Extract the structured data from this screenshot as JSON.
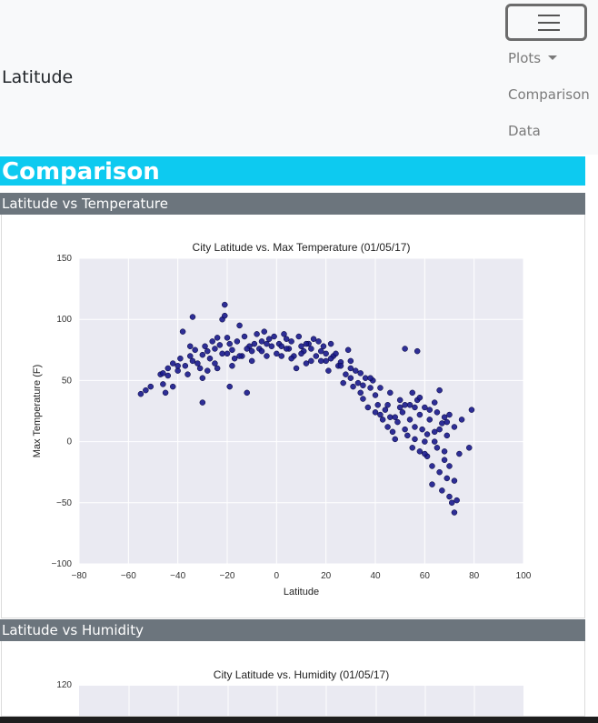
{
  "navbar": {
    "brand": "Latitude",
    "items": [
      {
        "label": "Plots"
      },
      {
        "label": "Comparison"
      },
      {
        "label": "Data"
      }
    ],
    "toggler_icon": "hamburger-menu-icon"
  },
  "page": {
    "heading": "Comparison",
    "colors": {
      "heading_bg": "#0dcaf0",
      "section_bg": "#6c757d"
    }
  },
  "sections": [
    {
      "title": "Latitude vs Temperature"
    },
    {
      "title": "Latitude vs Humidity"
    }
  ],
  "chart_data": [
    {
      "type": "scatter",
      "title": "City Latitude vs. Max Temperature (01/05/17)",
      "xlabel": "Latitude",
      "ylabel": "Max Temperature (F)",
      "xlim": [
        -80,
        100
      ],
      "ylim": [
        -100,
        150
      ],
      "xticks": [
        -80,
        -60,
        -40,
        -20,
        0,
        20,
        40,
        60,
        80,
        100
      ],
      "yticks": [
        -100,
        -50,
        0,
        50,
        100,
        150
      ],
      "grid": true,
      "marker_color": "#1a1a8c",
      "points": [
        [
          -55,
          39
        ],
        [
          -53,
          42
        ],
        [
          -51,
          45
        ],
        [
          -47,
          55
        ],
        [
          -46,
          56
        ],
        [
          -46,
          47
        ],
        [
          -45,
          40
        ],
        [
          -44,
          60
        ],
        [
          -42,
          64
        ],
        [
          -42,
          45
        ],
        [
          -40,
          58
        ],
        [
          -39,
          68
        ],
        [
          -38,
          90
        ],
        [
          -37,
          62
        ],
        [
          -36,
          55
        ],
        [
          -35,
          70
        ],
        [
          -34,
          66
        ],
        [
          -34,
          102
        ],
        [
          -33,
          75
        ],
        [
          -32,
          64
        ],
        [
          -31,
          60
        ],
        [
          -30,
          71
        ],
        [
          -30,
          32
        ],
        [
          -29,
          78
        ],
        [
          -28,
          74
        ],
        [
          -27,
          68
        ],
        [
          -26,
          82
        ],
        [
          -25,
          76
        ],
        [
          -24,
          85
        ],
        [
          -24,
          60
        ],
        [
          -23,
          79
        ],
        [
          -22,
          72
        ],
        [
          -22,
          100
        ],
        [
          -21,
          112
        ],
        [
          -21,
          103
        ],
        [
          -20,
          85
        ],
        [
          -19,
          80
        ],
        [
          -19,
          45
        ],
        [
          -18,
          75
        ],
        [
          -17,
          68
        ],
        [
          -16,
          82
        ],
        [
          -15,
          95
        ],
        [
          -14,
          70
        ],
        [
          -13,
          86
        ],
        [
          -12,
          40
        ],
        [
          -11,
          78
        ],
        [
          -10,
          74
        ],
        [
          -9,
          80
        ],
        [
          -8,
          88
        ],
        [
          -7,
          76
        ],
        [
          -6,
          82
        ],
        [
          -5,
          90
        ],
        [
          -4,
          70
        ],
        [
          -3,
          84
        ],
        [
          -2,
          78
        ],
        [
          -1,
          86
        ],
        [
          0,
          72
        ],
        [
          1,
          80
        ],
        [
          2,
          78
        ],
        [
          3,
          88
        ],
        [
          4,
          84
        ],
        [
          5,
          76
        ],
        [
          6,
          82
        ],
        [
          7,
          70
        ],
        [
          8,
          60
        ],
        [
          9,
          86
        ],
        [
          10,
          78
        ],
        [
          11,
          74
        ],
        [
          12,
          64
        ],
        [
          13,
          80
        ],
        [
          14,
          76
        ],
        [
          15,
          84
        ],
        [
          16,
          70
        ],
        [
          17,
          82
        ],
        [
          18,
          74
        ],
        [
          19,
          78
        ],
        [
          20,
          66
        ],
        [
          21,
          58
        ],
        [
          22,
          80
        ],
        [
          23,
          70
        ],
        [
          24,
          72
        ],
        [
          25,
          62
        ],
        [
          26,
          65
        ],
        [
          27,
          48
        ],
        [
          28,
          55
        ],
        [
          29,
          75
        ],
        [
          30,
          52
        ],
        [
          31,
          45
        ],
        [
          32,
          58
        ],
        [
          33,
          48
        ],
        [
          34,
          40
        ],
        [
          35,
          35
        ],
        [
          36,
          52
        ],
        [
          37,
          28
        ],
        [
          38,
          44
        ],
        [
          39,
          50
        ],
        [
          40,
          38
        ],
        [
          41,
          30
        ],
        [
          42,
          22
        ],
        [
          43,
          18
        ],
        [
          44,
          26
        ],
        [
          45,
          12
        ],
        [
          46,
          20
        ],
        [
          47,
          8
        ],
        [
          48,
          2
        ],
        [
          49,
          16
        ],
        [
          50,
          28
        ],
        [
          51,
          24
        ],
        [
          52,
          30
        ],
        [
          52,
          76
        ],
        [
          53,
          5
        ],
        [
          54,
          18
        ],
        [
          55,
          -5
        ],
        [
          56,
          12
        ],
        [
          57,
          34
        ],
        [
          57,
          74
        ],
        [
          58,
          22
        ],
        [
          58,
          -8
        ],
        [
          59,
          10
        ],
        [
          60,
          0
        ],
        [
          60,
          28
        ],
        [
          61,
          -12
        ],
        [
          62,
          18
        ],
        [
          63,
          -20
        ],
        [
          63,
          -35
        ],
        [
          64,
          32
        ],
        [
          64,
          8
        ],
        [
          65,
          -5
        ],
        [
          66,
          -25
        ],
        [
          66,
          42
        ],
        [
          67,
          15
        ],
        [
          67,
          -40
        ],
        [
          68,
          20
        ],
        [
          68,
          -15
        ],
        [
          69,
          -30
        ],
        [
          69,
          5
        ],
        [
          70,
          -45
        ],
        [
          70,
          22
        ],
        [
          71,
          -50
        ],
        [
          72,
          -58
        ],
        [
          72,
          12
        ],
        [
          73,
          -48
        ],
        [
          74,
          -10
        ],
        [
          75,
          18
        ],
        [
          78,
          -5
        ],
        [
          79,
          26
        ],
        [
          -25,
          64
        ],
        [
          -28,
          58
        ],
        [
          -18,
          62
        ],
        [
          -15,
          70
        ],
        [
          -10,
          66
        ],
        [
          -6,
          74
        ],
        [
          2,
          70
        ],
        [
          6,
          68
        ],
        [
          10,
          72
        ],
        [
          14,
          66
        ],
        [
          18,
          66
        ],
        [
          22,
          68
        ],
        [
          26,
          62
        ],
        [
          30,
          60
        ],
        [
          34,
          56
        ],
        [
          38,
          52
        ],
        [
          42,
          44
        ],
        [
          46,
          40
        ],
        [
          50,
          34
        ],
        [
          54,
          30
        ],
        [
          56,
          28
        ],
        [
          58,
          36
        ],
        [
          62,
          26
        ],
        [
          64,
          0
        ],
        [
          66,
          10
        ],
        [
          68,
          -8
        ],
        [
          70,
          -20
        ],
        [
          72,
          -32
        ],
        [
          60,
          -10
        ],
        [
          55,
          40
        ],
        [
          45,
          30
        ],
        [
          40,
          24
        ],
        [
          35,
          46
        ],
        [
          30,
          66
        ],
        [
          20,
          72
        ],
        [
          12,
          80
        ],
        [
          4,
          76
        ],
        [
          -4,
          80
        ],
        [
          -12,
          76
        ],
        [
          -20,
          72
        ],
        [
          -30,
          52
        ],
        [
          -35,
          78
        ],
        [
          -40,
          62
        ],
        [
          -44,
          54
        ],
        [
          48,
          20
        ],
        [
          52,
          10
        ],
        [
          56,
          2
        ],
        [
          61,
          6
        ],
        [
          65,
          24
        ],
        [
          69,
          16
        ]
      ]
    },
    {
      "type": "scatter",
      "title": "City Latitude vs. Humidity (01/05/17)",
      "xlabel": "",
      "ylabel": "",
      "yticks": [
        120
      ],
      "grid": true
    }
  ]
}
